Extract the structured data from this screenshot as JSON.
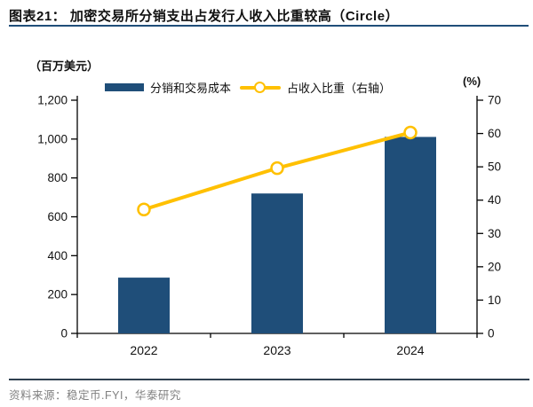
{
  "header": {
    "title": "图表21：  加密交易所分销支出占发行人收入比重较高（Circle）"
  },
  "colors": {
    "bar": "#1F4E79",
    "line": "#FFC000",
    "marker_fill": "#FFFFFF",
    "title_underline": "#1F4E79",
    "axis": "#000000",
    "divider": "#2F4050",
    "source_text": "#808080"
  },
  "legend": {
    "bar_label": "分销和交易成本",
    "line_label": "占收入比重（右轴）"
  },
  "axes": {
    "left_unit": "（百万美元）",
    "right_unit": "(%)"
  },
  "chart_data": {
    "type": "combo",
    "categories": [
      "2022",
      "2023",
      "2024"
    ],
    "series": [
      {
        "name": "分销和交易成本",
        "type": "bar",
        "axis": "left",
        "color": "#1F4E79",
        "values": [
          287,
          720,
          1011
        ]
      },
      {
        "name": "占收入比重（右轴）",
        "type": "line",
        "axis": "right",
        "color": "#FFC000",
        "marker": "open-circle",
        "values": [
          37.2,
          49.6,
          60.3
        ]
      }
    ],
    "left_axis": {
      "label": "（百万美元）",
      "min": 0,
      "max": 1200,
      "step": 200,
      "tick_labels": [
        "0",
        "200",
        "400",
        "600",
        "800",
        "1,000",
        "1,200"
      ]
    },
    "right_axis": {
      "label": "(%)",
      "min": 0,
      "max": 70,
      "step": 10,
      "tick_labels": [
        "0",
        "10",
        "20",
        "30",
        "40",
        "50",
        "60",
        "70"
      ]
    },
    "legend_position": "top",
    "grid": false
  },
  "source": {
    "text": "资料来源：稳定币.FYI，华泰研究"
  }
}
